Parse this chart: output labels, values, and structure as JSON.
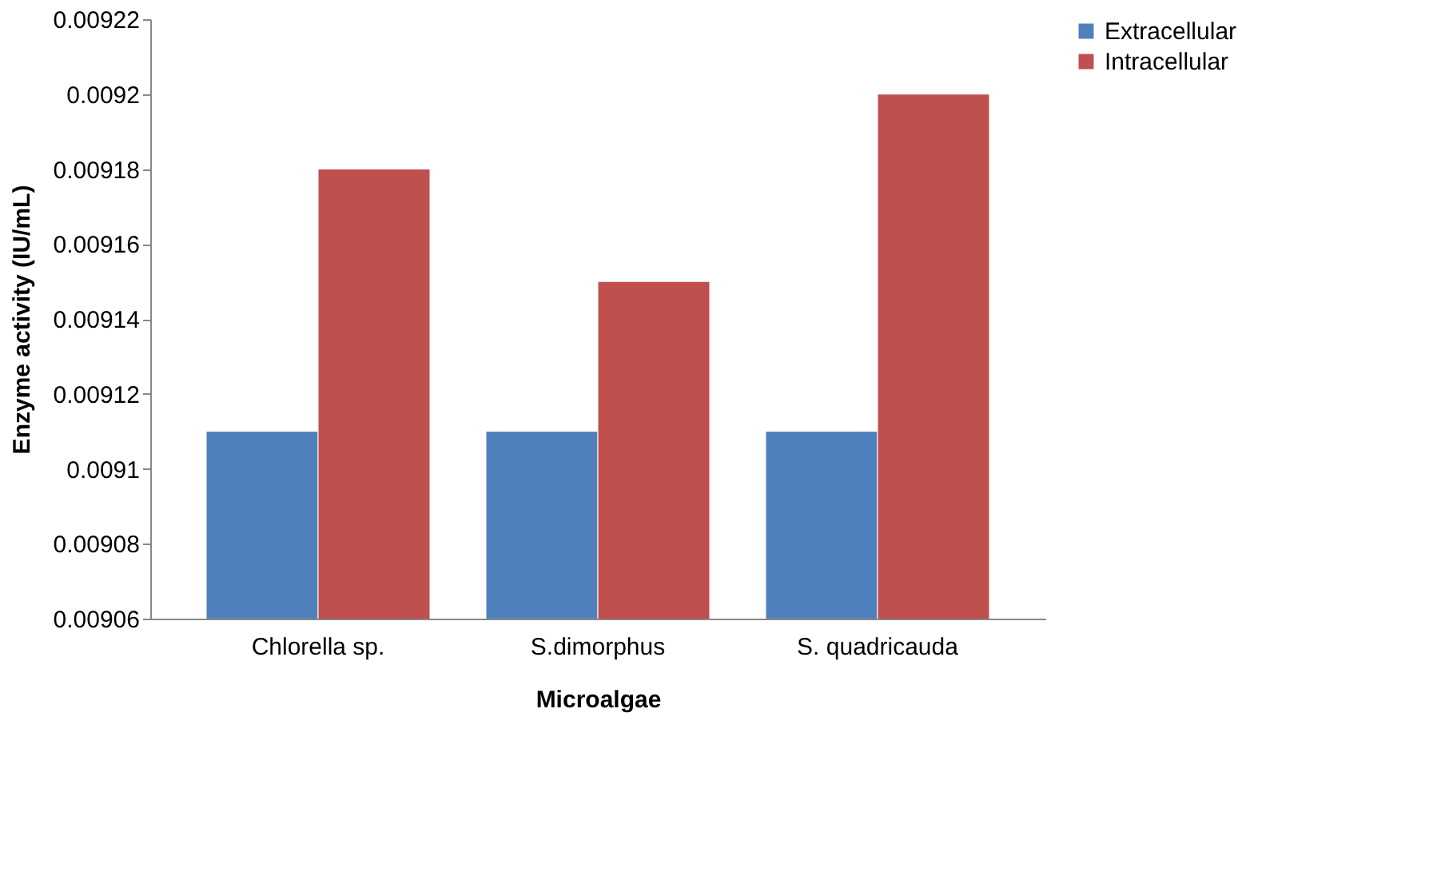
{
  "chart_data": {
    "type": "bar",
    "xlabel": "Microalgae",
    "ylabel": "Enzyme activity (IU/mL)",
    "categories": [
      "Chlorella sp.",
      "S.dimorphus",
      "S. quadricauda"
    ],
    "series": [
      {
        "name": "Extracellular",
        "color": "#4f81bd",
        "values": [
          0.00911,
          0.00911,
          0.00911
        ]
      },
      {
        "name": "Intracellular",
        "color": "#c0504d",
        "values": [
          0.00918,
          0.00915,
          0.0092
        ]
      }
    ],
    "ylim": [
      0.00906,
      0.00922
    ],
    "yticks": [
      0.00906,
      0.00908,
      0.0091,
      0.00912,
      0.00914,
      0.00916,
      0.00918,
      0.0092,
      0.00922
    ],
    "grid": false,
    "legend": "right"
  }
}
